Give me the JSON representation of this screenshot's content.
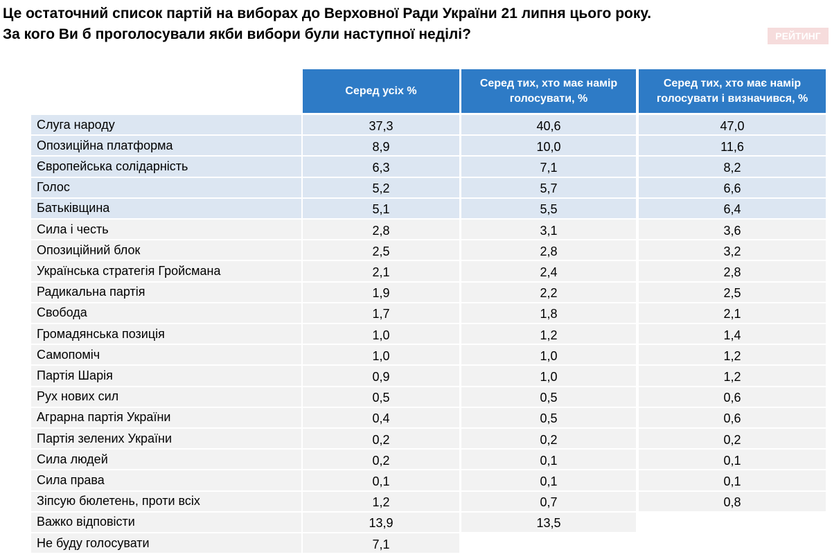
{
  "header": {
    "title": [
      "Це остаточний список партій на виборах до Верховної Ради України 21 липня цього року.",
      "За кого Ви б проголосували якби вибори були наступної неділі?"
    ],
    "logo": "РЕЙТИНГ"
  },
  "table": {
    "columns": [
      "Серед усіх %",
      "Серед тих, хто має намір голосувати, %",
      "Серед тих, хто має намір голосувати і визначився, %"
    ],
    "rows": [
      [
        "Слуга народу",
        "37,3",
        "40,6",
        "47,0"
      ],
      [
        "Опозиційна платформа",
        "8,9",
        "10,0",
        "11,6"
      ],
      [
        "Європейська солідарність",
        "6,3",
        "7,1",
        "8,2"
      ],
      [
        "Голос",
        "5,2",
        "5,7",
        "6,6"
      ],
      [
        "Батьківщина",
        "5,1",
        "5,5",
        "6,4"
      ],
      [
        "Сила і честь",
        "2,8",
        "3,1",
        "3,6"
      ],
      [
        "Опозиційний блок",
        "2,5",
        "2,8",
        "3,2"
      ],
      [
        "Українська стратегія Гройсмана",
        "2,1",
        "2,4",
        "2,8"
      ],
      [
        "Радикальна партія",
        "1,9",
        "2,2",
        "2,5"
      ],
      [
        "Свобода",
        "1,7",
        "1,8",
        "2,1"
      ],
      [
        "Громадянська позиція",
        "1,0",
        "1,2",
        "1,4"
      ],
      [
        "Самопоміч",
        "1,0",
        "1,0",
        "1,2"
      ],
      [
        "Партія Шарія",
        "0,9",
        "1,0",
        "1,2"
      ],
      [
        "Рух нових сил",
        "0,5",
        "0,5",
        "0,6"
      ],
      [
        "Аграрна партія України",
        "0,4",
        "0,5",
        "0,6"
      ],
      [
        "Партія зелених України",
        "0,2",
        "0,2",
        "0,2"
      ],
      [
        "Сила людей",
        "0,2",
        "0,1",
        "0,1"
      ],
      [
        "Сила права",
        "0,1",
        "0,1",
        "0,1"
      ],
      [
        "Зіпсую бюлетень, проти всіх",
        "1,2",
        "0,7",
        "0,8"
      ],
      [
        "Важко відповісти",
        "13,9",
        "13,5"
      ],
      [
        "Не буду голосувати",
        "7,1"
      ]
    ]
  }
}
